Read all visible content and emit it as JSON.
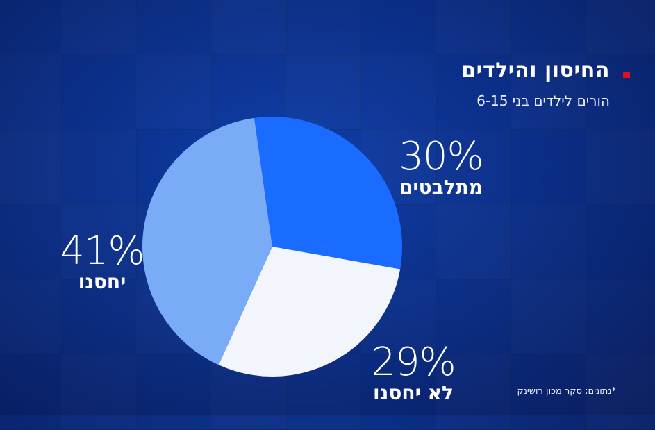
{
  "header": {
    "title": "החיסון והילדים",
    "subtitle": "הורים לילדים בני 6-15"
  },
  "source_note": "*נתונים: סקר מכון רושינק",
  "chart_data": {
    "type": "pie",
    "title": "החיסון והילדים",
    "subtitle": "הורים לילדים בני 6-15",
    "slices": [
      {
        "label": "מתלבטים",
        "value": 30,
        "display": "30%",
        "color": "#1a6bff"
      },
      {
        "label": "לא יחסנו",
        "value": 29,
        "display": "29%",
        "color": "#f2f5fb"
      },
      {
        "label": "יחסנו",
        "value": 41,
        "display": "41%",
        "color": "#7aabf7"
      }
    ]
  }
}
